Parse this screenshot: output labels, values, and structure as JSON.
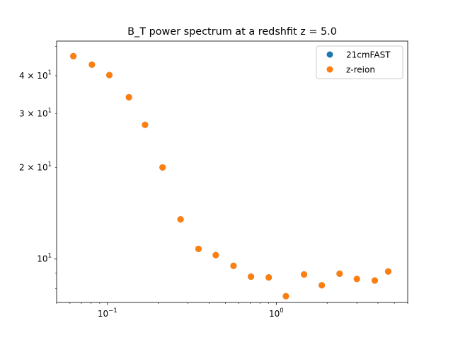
{
  "chart_data": {
    "type": "scatter",
    "title": "B_T power spectrum at a redshfit z = 5.0",
    "xlabel": "",
    "ylabel": "",
    "xscale": "log",
    "yscale": "log",
    "xlim": [
      0.05,
      6.0
    ],
    "ylim": [
      7.2,
      52
    ],
    "grid": false,
    "legend_position": "top-right",
    "x_ticks": [
      {
        "value": 0.1,
        "base": "10",
        "exp": "−1"
      },
      {
        "value": 1.0,
        "base": "10",
        "exp": "0"
      }
    ],
    "y_ticks": [
      {
        "value": 10,
        "label": "10",
        "base": "10",
        "exp": "1",
        "style": "major"
      },
      {
        "value": 20,
        "label": "2 × 10",
        "exp": "1",
        "style": "minor"
      },
      {
        "value": 30,
        "label": "3 × 10",
        "exp": "1",
        "style": "minor"
      },
      {
        "value": 40,
        "label": "4 × 10",
        "exp": "1",
        "style": "minor"
      }
    ],
    "series": [
      {
        "name": "21cmFAST",
        "color": "#1f77b4",
        "x": [
          0.0628,
          0.0809,
          0.1026,
          0.134,
          0.167,
          0.212,
          0.271,
          0.346,
          0.438,
          0.558,
          0.708,
          0.902,
          1.14,
          1.46,
          1.86,
          2.37,
          3.0,
          3.83,
          4.6
        ],
        "y": [
          46.4,
          43.5,
          40.2,
          34.0,
          27.6,
          20.0,
          13.5,
          10.8,
          10.3,
          9.5,
          8.75,
          8.7,
          7.55,
          8.9,
          8.2,
          8.95,
          8.6,
          8.5,
          9.1
        ]
      },
      {
        "name": "z-reion",
        "color": "#ff7f0e",
        "x": [
          0.0628,
          0.0809,
          0.1026,
          0.134,
          0.167,
          0.212,
          0.271,
          0.346,
          0.438,
          0.558,
          0.708,
          0.902,
          1.14,
          1.46,
          1.86,
          2.37,
          3.0,
          3.83,
          4.6
        ],
        "y": [
          46.4,
          43.5,
          40.2,
          34.0,
          27.6,
          20.0,
          13.5,
          10.8,
          10.3,
          9.5,
          8.75,
          8.7,
          7.55,
          8.9,
          8.2,
          8.95,
          8.6,
          8.5,
          9.1
        ]
      }
    ]
  }
}
